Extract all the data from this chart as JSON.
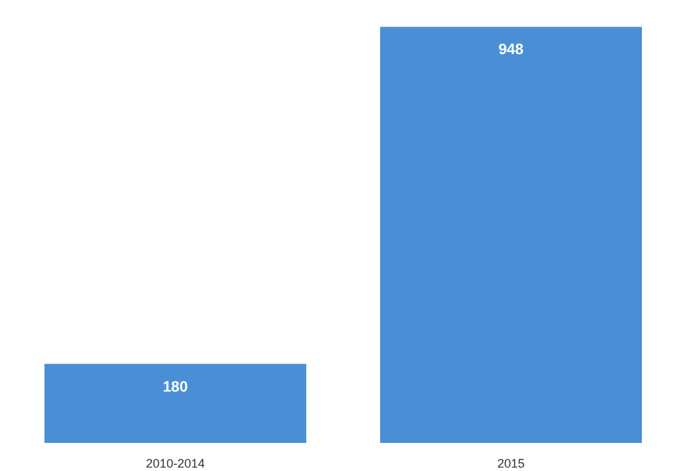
{
  "chart_data": {
    "type": "bar",
    "categories": [
      "2010-2014",
      "2015"
    ],
    "values": [
      180,
      948
    ],
    "color": "#4a8fd6",
    "data_labels": true
  }
}
